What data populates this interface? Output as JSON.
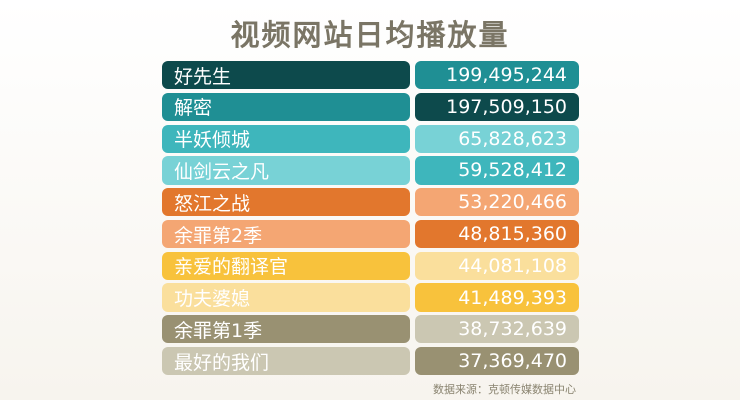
{
  "chart_data": {
    "type": "table",
    "title": "视频网站日均播放量",
    "rows": [
      {
        "name": "好先生",
        "value": "199,495,244",
        "name_color": "#0d4a4c",
        "value_color": "#1f8f94"
      },
      {
        "name": "解密",
        "value": "197,509,150",
        "name_color": "#1f8f94",
        "value_color": "#0d4a4c"
      },
      {
        "name": "半妖倾城",
        "value": "65,828,623",
        "name_color": "#3eb6bc",
        "value_color": "#78d2d6"
      },
      {
        "name": "仙剑云之凡",
        "value": "59,528,412",
        "name_color": "#78d2d6",
        "value_color": "#3eb6bc"
      },
      {
        "name": "怒江之战",
        "value": "53,220,466",
        "name_color": "#e2772d",
        "value_color": "#f4a673"
      },
      {
        "name": "余罪第2季",
        "value": "48,815,360",
        "name_color": "#f4a673",
        "value_color": "#e2772d"
      },
      {
        "name": "亲爱的翻译官",
        "value": "44,081,108",
        "name_color": "#f8c23c",
        "value_color": "#fadf9c"
      },
      {
        "name": "功夫婆媳",
        "value": "41,489,393",
        "name_color": "#fadf9c",
        "value_color": "#f8c23c"
      },
      {
        "name": "余罪第1季",
        "value": "38,732,639",
        "name_color": "#999172",
        "value_color": "#cbc7b2"
      },
      {
        "name": "最好的我们",
        "value": "37,369,470",
        "name_color": "#cbc7b2",
        "value_color": "#999172"
      }
    ]
  },
  "source": "数据来源：克顿传媒数据中心"
}
